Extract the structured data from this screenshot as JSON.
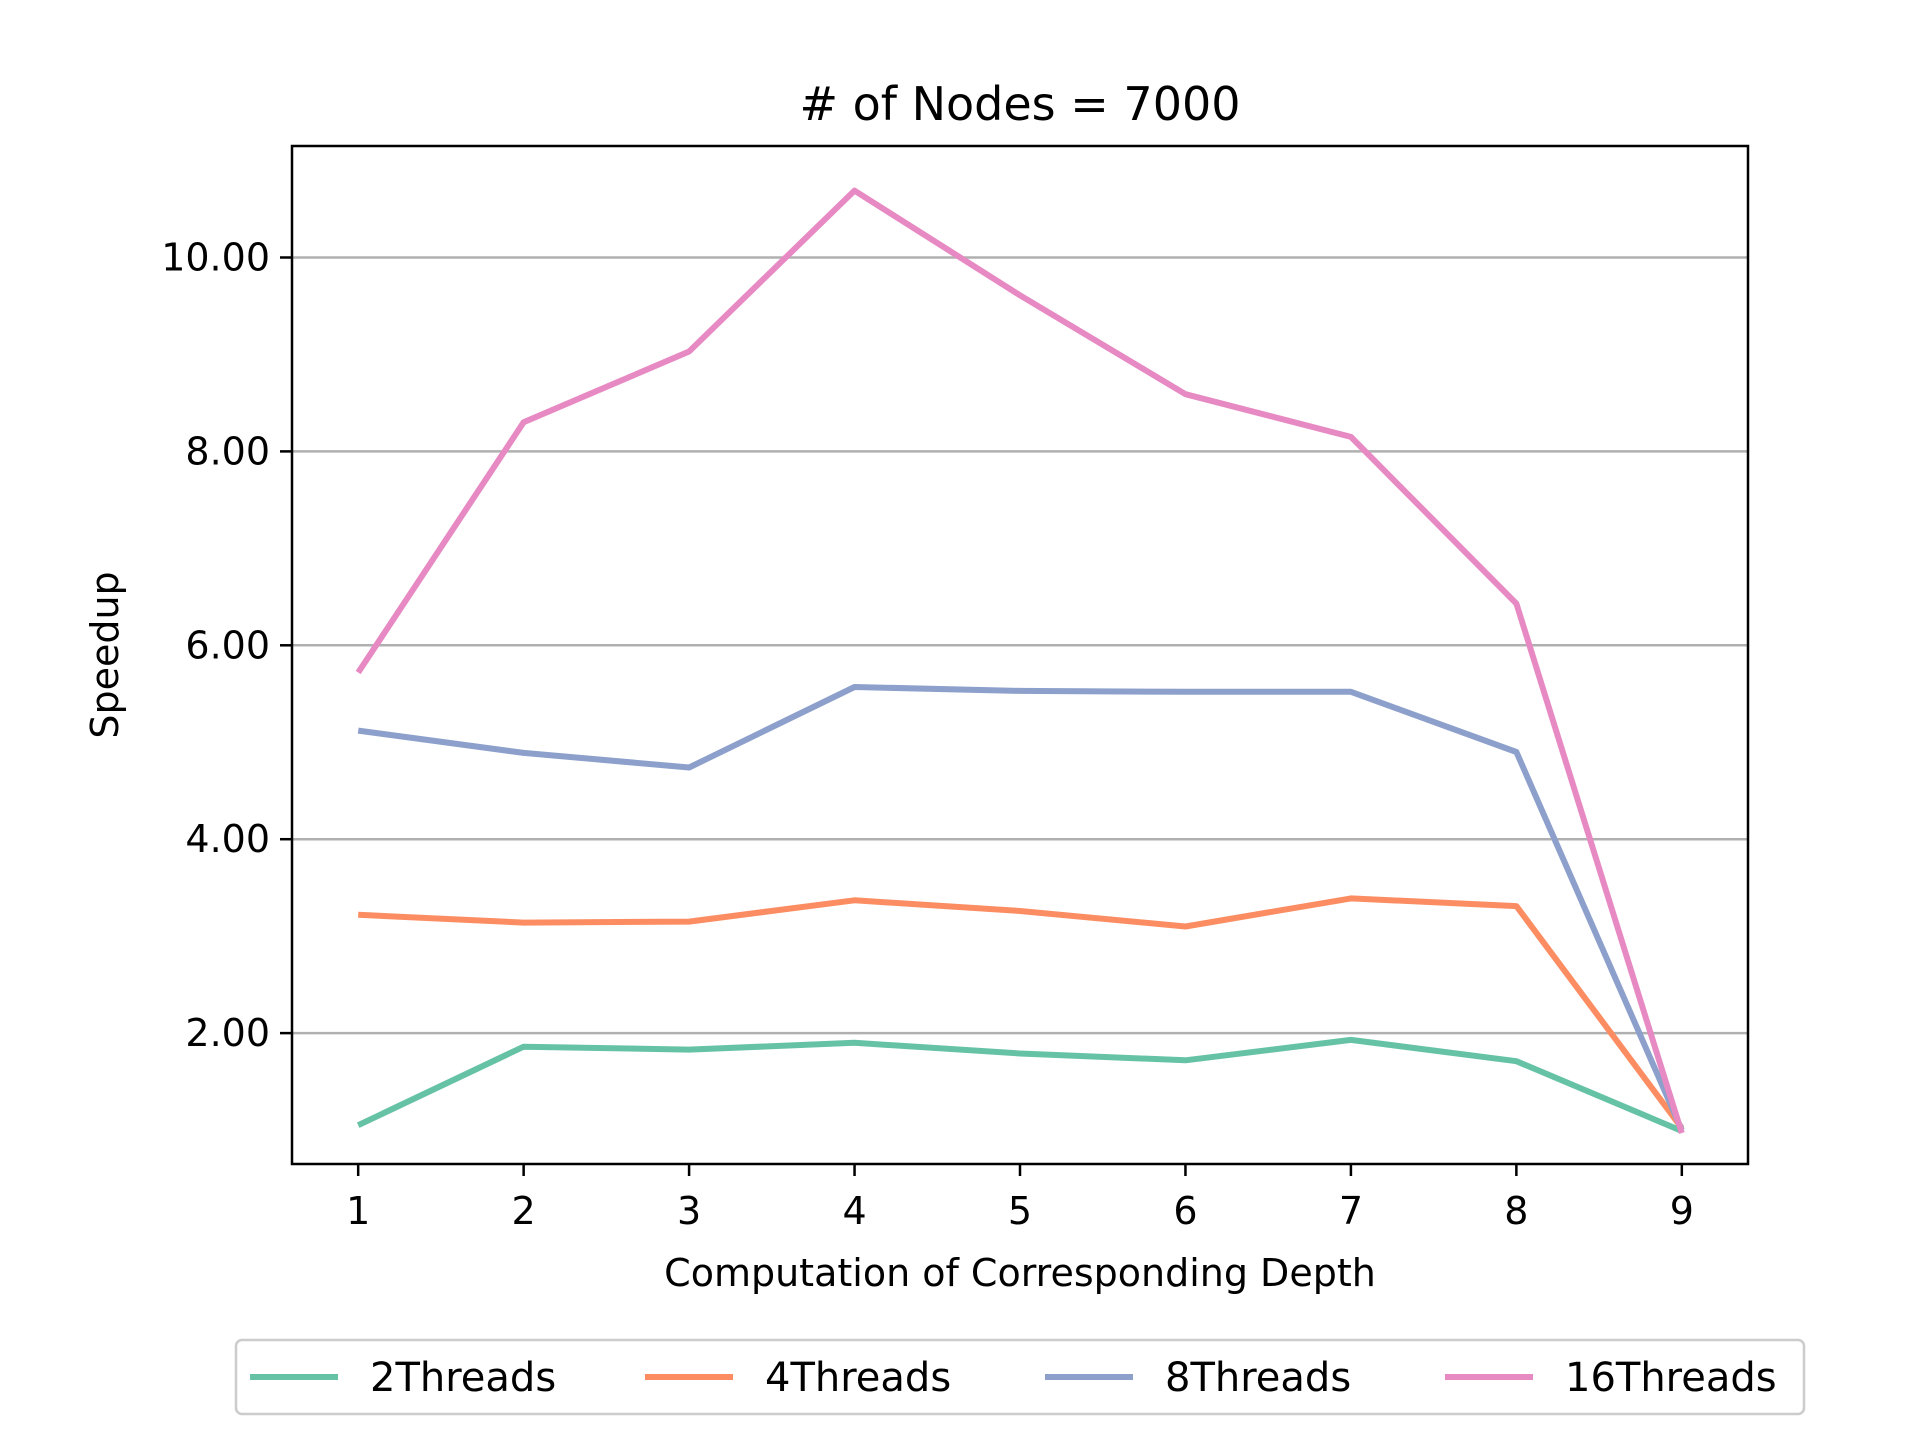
{
  "chart_data": {
    "type": "line",
    "title": "# of Nodes = 7000",
    "xlabel": "Computation of Corresponding Depth",
    "ylabel": "Speedup",
    "x": [
      1,
      2,
      3,
      4,
      5,
      6,
      7,
      8,
      9
    ],
    "x_tick_labels": [
      "1",
      "2",
      "3",
      "4",
      "5",
      "6",
      "7",
      "8",
      "9"
    ],
    "y_ticks": [
      2,
      4,
      6,
      8,
      10
    ],
    "y_tick_labels": [
      "2.00",
      "4.00",
      "6.00",
      "8.00",
      "10.00"
    ],
    "xlim": [
      0.6,
      9.4
    ],
    "ylim": [
      0.65,
      11.15
    ],
    "grid": "horizontal",
    "legend_position": "bottom-center",
    "series": [
      {
        "name": "2Threads",
        "color": "#66c2a5",
        "values": [
          1.05,
          1.86,
          1.83,
          1.9,
          1.79,
          1.72,
          1.93,
          1.71,
          0.99
        ]
      },
      {
        "name": "4Threads",
        "color": "#fc8d62",
        "values": [
          3.22,
          3.14,
          3.15,
          3.37,
          3.26,
          3.1,
          3.39,
          3.31,
          1.02
        ]
      },
      {
        "name": "8Threads",
        "color": "#8da0cb",
        "values": [
          5.12,
          4.89,
          4.74,
          5.57,
          5.53,
          5.52,
          5.52,
          4.9,
          1.0
        ]
      },
      {
        "name": "16Threads",
        "color": "#e78ac3",
        "values": [
          5.72,
          8.3,
          9.03,
          10.69,
          9.61,
          8.59,
          8.15,
          6.43,
          0.97
        ]
      }
    ]
  }
}
